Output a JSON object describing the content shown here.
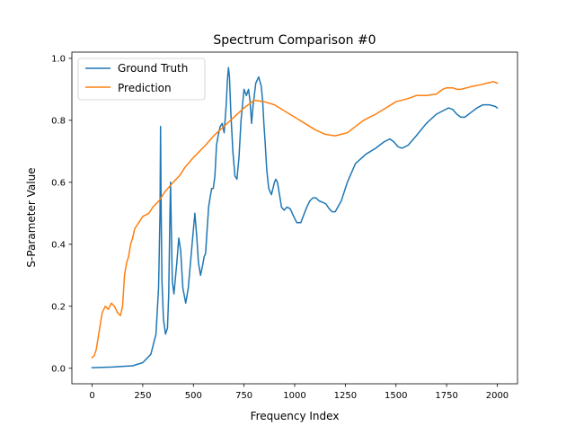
{
  "chart_data": {
    "type": "line",
    "title": "Spectrum Comparison #0",
    "xlabel": "Frequency Index",
    "ylabel": "S-Parameter Value",
    "xlim": [
      -100,
      2100
    ],
    "ylim": [
      -0.05,
      1.02
    ],
    "xticks": [
      0,
      250,
      500,
      750,
      1000,
      1250,
      1500,
      1750,
      2000
    ],
    "xtick_labels": [
      "0",
      "250",
      "500",
      "750",
      "1000",
      "1250",
      "1500",
      "1750",
      "2000"
    ],
    "yticks": [
      0.0,
      0.2,
      0.4,
      0.6,
      0.8,
      1.0
    ],
    "ytick_labels": [
      "0.0",
      "0.2",
      "0.4",
      "0.6",
      "0.8",
      "1.0"
    ],
    "grid": false,
    "legend_position": "top-left",
    "series": [
      {
        "name": "Ground Truth",
        "color": "#1f77b4",
        "x": [
          0,
          100,
          200,
          250,
          290,
          315,
          328,
          335,
          338,
          341,
          345,
          352,
          362,
          372,
          378,
          383,
          387,
          391,
          396,
          404,
          418,
          428,
          437,
          448,
          462,
          475,
          495,
          507,
          517,
          525,
          535,
          545,
          553,
          560,
          568,
          575,
          582,
          590,
          598,
          606,
          614,
          622,
          632,
          642,
          652,
          662,
          668,
          673,
          678,
          685,
          695,
          705,
          715,
          725,
          735,
          750,
          762,
          772,
          780,
          787,
          795,
          808,
          822,
          835,
          842,
          848,
          855,
          862,
          872,
          885,
          900,
          907,
          915,
          925,
          935,
          948,
          962,
          978,
          995,
          1010,
          1030,
          1048,
          1060,
          1075,
          1090,
          1105,
          1120,
          1140,
          1155,
          1170,
          1185,
          1200,
          1230,
          1260,
          1300,
          1350,
          1400,
          1440,
          1470,
          1490,
          1510,
          1530,
          1560,
          1600,
          1650,
          1700,
          1730,
          1760,
          1780,
          1800,
          1820,
          1840,
          1870,
          1900,
          1930,
          1960,
          1990,
          2000
        ],
        "y": [
          0.002,
          0.004,
          0.008,
          0.018,
          0.045,
          0.11,
          0.26,
          0.5,
          0.78,
          0.5,
          0.28,
          0.16,
          0.11,
          0.13,
          0.24,
          0.45,
          0.6,
          0.45,
          0.28,
          0.24,
          0.34,
          0.42,
          0.38,
          0.26,
          0.21,
          0.26,
          0.41,
          0.5,
          0.42,
          0.34,
          0.3,
          0.33,
          0.36,
          0.37,
          0.45,
          0.52,
          0.55,
          0.58,
          0.58,
          0.62,
          0.72,
          0.75,
          0.78,
          0.79,
          0.76,
          0.85,
          0.93,
          0.97,
          0.94,
          0.82,
          0.7,
          0.62,
          0.61,
          0.68,
          0.8,
          0.9,
          0.88,
          0.9,
          0.86,
          0.79,
          0.85,
          0.92,
          0.94,
          0.91,
          0.86,
          0.79,
          0.72,
          0.64,
          0.58,
          0.56,
          0.6,
          0.61,
          0.6,
          0.56,
          0.52,
          0.51,
          0.52,
          0.515,
          0.49,
          0.47,
          0.47,
          0.5,
          0.52,
          0.54,
          0.55,
          0.55,
          0.54,
          0.535,
          0.53,
          0.515,
          0.505,
          0.505,
          0.54,
          0.6,
          0.66,
          0.69,
          0.71,
          0.73,
          0.74,
          0.73,
          0.715,
          0.71,
          0.72,
          0.75,
          0.79,
          0.82,
          0.83,
          0.84,
          0.835,
          0.82,
          0.81,
          0.81,
          0.825,
          0.84,
          0.85,
          0.85,
          0.845,
          0.84
        ]
      },
      {
        "name": "Prediction",
        "color": "#ff7f0e",
        "x": [
          0,
          10,
          20,
          35,
          50,
          65,
          80,
          95,
          110,
          125,
          140,
          150,
          160,
          170,
          180,
          190,
          200,
          210,
          230,
          250,
          280,
          300,
          330,
          360,
          400,
          430,
          460,
          500,
          560,
          600,
          650,
          700,
          750,
          800,
          850,
          900,
          950,
          1000,
          1050,
          1100,
          1150,
          1200,
          1230,
          1260,
          1280,
          1300,
          1320,
          1340,
          1370,
          1400,
          1450,
          1500,
          1560,
          1600,
          1650,
          1700,
          1730,
          1750,
          1780,
          1800,
          1820,
          1850,
          1880,
          1920,
          1950,
          1980,
          2000
        ],
        "y": [
          0.035,
          0.04,
          0.06,
          0.12,
          0.18,
          0.2,
          0.19,
          0.21,
          0.2,
          0.18,
          0.17,
          0.2,
          0.3,
          0.34,
          0.36,
          0.4,
          0.42,
          0.45,
          0.47,
          0.49,
          0.5,
          0.52,
          0.54,
          0.57,
          0.6,
          0.62,
          0.65,
          0.68,
          0.72,
          0.75,
          0.78,
          0.81,
          0.84,
          0.865,
          0.86,
          0.85,
          0.83,
          0.81,
          0.79,
          0.77,
          0.755,
          0.75,
          0.755,
          0.76,
          0.77,
          0.78,
          0.79,
          0.8,
          0.81,
          0.82,
          0.84,
          0.86,
          0.87,
          0.88,
          0.88,
          0.885,
          0.9,
          0.905,
          0.905,
          0.9,
          0.9,
          0.905,
          0.91,
          0.915,
          0.92,
          0.925,
          0.92
        ]
      }
    ]
  }
}
